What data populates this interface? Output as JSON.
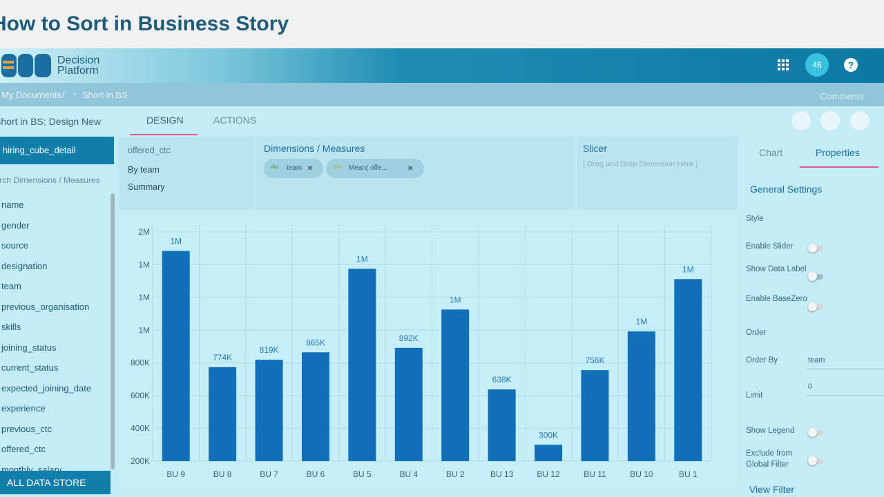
{
  "header": {
    "title": "How to Sort in Business Story"
  },
  "app": {
    "logo": [
      "Decision",
      "Platform"
    ],
    "badge": "46"
  },
  "breadcrumb": [
    "My Documents",
    "/",
    "Short in BS"
  ],
  "comments": "Comments",
  "story_title": "Short in BS: Design New",
  "tabs": [
    "DESIGN",
    "ACTIONS"
  ],
  "data_panel": {
    "cube": "hiring_cube_detail",
    "search": "Search Dimensions / Measures",
    "fields": [
      "name",
      "gender",
      "source",
      "designation",
      "team",
      "previous_organisation",
      "skills",
      "joining_status",
      "current_status",
      "expected_joining_date",
      "experience",
      "previous_ctc",
      "offered_ctc",
      "monthly_salary"
    ],
    "footer": "ALL DATA STORE"
  },
  "view_list": [
    "offered_ctc",
    "By team",
    "Summary"
  ],
  "dimensions": {
    "title": "Dimensions / Measures",
    "chips": [
      {
        "type": "Abc",
        "label": "team"
      },
      {
        "type": "123",
        "label": "Mean( offe..."
      }
    ]
  },
  "slicer": {
    "title": "Slicer",
    "hint": "[ Drag and Drop Dimension Here ]"
  },
  "properties": {
    "tabs": [
      "Chart",
      "Properties"
    ],
    "section": "General Settings",
    "settings": [
      "Style",
      "Enable Slider",
      "Show Data Label",
      "Enable BaseZero",
      "Order",
      "Order By",
      "Limit",
      "Show Legend",
      "Exclude from Global Filter"
    ],
    "order_by": "team",
    "limit": "0",
    "footer": "View Filter"
  },
  "chart_data": {
    "type": "bar",
    "categories": [
      "BU 9",
      "BU 8",
      "BU 7",
      "BU 6",
      "BU 5",
      "BU 4",
      "BU 2",
      "BU 13",
      "BU 12",
      "BU 11",
      "BU 10",
      "BU 1"
    ],
    "values": [
      1484000,
      774000,
      819000,
      865000,
      1375000,
      892000,
      1126000,
      638000,
      300000,
      756000,
      992000,
      1312000
    ],
    "value_labels": [
      "1M",
      "774K",
      "819K",
      "865K",
      "1M",
      "892K",
      "1M",
      "638K",
      "300K",
      "756K",
      "1M",
      "1M"
    ],
    "color": "#1170b7",
    "ylim": [
      200000,
      1600000
    ],
    "yticks": [
      {
        "value": 200000,
        "label": "200K"
      },
      {
        "value": 400000,
        "label": "400K"
      },
      {
        "value": 600000,
        "label": "600K"
      },
      {
        "value": 800000,
        "label": "800K"
      },
      {
        "value": 1000000,
        "label": "1M"
      },
      {
        "value": 1200000,
        "label": "1M"
      },
      {
        "value": 1400000,
        "label": "1M"
      },
      {
        "value": 1600000,
        "label": "2M"
      }
    ],
    "grid": true
  }
}
